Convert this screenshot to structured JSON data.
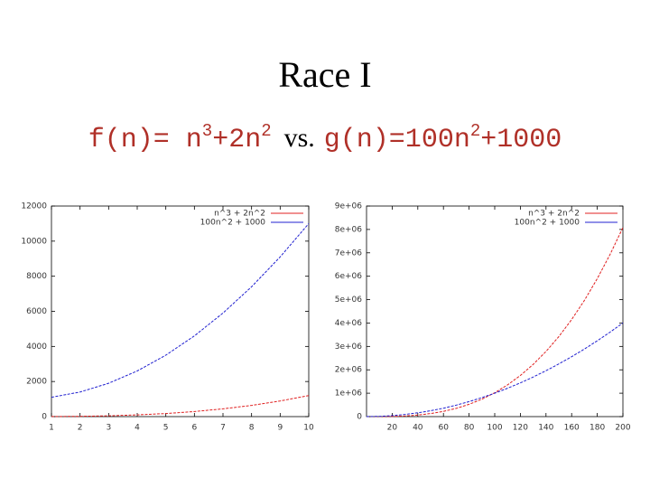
{
  "heading": {
    "title": "Race I",
    "formula": [
      {
        "text": "f(n)= n",
        "font": "mono"
      },
      {
        "text": "3",
        "font": "mono",
        "sup": true
      },
      {
        "text": "+2n",
        "font": "mono"
      },
      {
        "text": "2",
        "font": "mono",
        "sup": true
      },
      {
        "text": "vs.",
        "font": "serif"
      },
      {
        "text": "g(n)=100n",
        "font": "mono"
      },
      {
        "text": "2",
        "font": "mono",
        "sup": true
      },
      {
        "text": "+1000",
        "font": "mono"
      }
    ]
  },
  "chart_data": [
    {
      "type": "line",
      "legend": "top-right",
      "x": [
        1,
        2,
        3,
        4,
        5,
        6,
        7,
        8,
        9,
        10
      ],
      "series": [
        {
          "name": "n^3 + 2n^2",
          "color": "#e02020",
          "values": [
            3,
            16,
            45,
            96,
            175,
            288,
            441,
            640,
            891,
            1200
          ]
        },
        {
          "name": "100n^2 + 1000",
          "color": "#2020d0",
          "values": [
            1100,
            1400,
            1900,
            2600,
            3500,
            4600,
            5900,
            7400,
            9100,
            11000
          ]
        }
      ],
      "xlim": [
        1,
        10
      ],
      "xticks": [
        1,
        2,
        3,
        4,
        5,
        6,
        7,
        8,
        9,
        10
      ],
      "ylim": [
        0,
        12000
      ],
      "yticks": [
        0,
        2000,
        4000,
        6000,
        8000,
        10000,
        12000
      ]
    },
    {
      "type": "line",
      "legend": "top-right",
      "x": [
        0,
        10,
        20,
        30,
        40,
        50,
        60,
        70,
        80,
        90,
        100,
        110,
        120,
        130,
        140,
        150,
        160,
        170,
        180,
        190,
        200
      ],
      "series": [
        {
          "name": "n^3 + 2n^2",
          "color": "#e02020",
          "values": [
            0,
            1200,
            8800,
            28800,
            67200,
            130000,
            223200,
            352800,
            524800,
            745200,
            1020000,
            1355200,
            1756800,
            2230800,
            2783200,
            3420000,
            4147200,
            4970800,
            5896800,
            6931800,
            8080000
          ]
        },
        {
          "name": "100n^2 + 1000",
          "color": "#2020d0",
          "values": [
            1000,
            11000,
            41000,
            91000,
            161000,
            251000,
            361000,
            491000,
            641000,
            811000,
            1001000,
            1211000,
            1441000,
            1691000,
            1961000,
            2251000,
            2561000,
            2891000,
            3241000,
            3611000,
            4001000
          ]
        }
      ],
      "xlim": [
        0,
        200
      ],
      "xticks": [
        20,
        40,
        60,
        80,
        100,
        120,
        140,
        160,
        180,
        200
      ],
      "ylim": [
        0,
        9000000
      ],
      "yticks": [
        0,
        {
          "value": 1000000,
          "label": "1e+06"
        },
        {
          "value": 2000000,
          "label": "2e+06"
        },
        {
          "value": 3000000,
          "label": "3e+06"
        },
        {
          "value": 4000000,
          "label": "4e+06"
        },
        {
          "value": 5000000,
          "label": "5e+06"
        },
        {
          "value": 6000000,
          "label": "6e+06"
        },
        {
          "value": 7000000,
          "label": "7e+06"
        },
        {
          "value": 8000000,
          "label": "8e+06"
        },
        {
          "value": 9000000,
          "label": "9e+06"
        }
      ]
    }
  ]
}
